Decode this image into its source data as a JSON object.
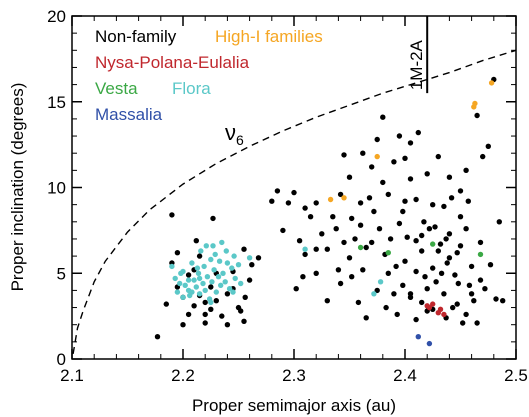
{
  "chart_data": {
    "type": "scatter",
    "title": "",
    "xlabel": "Proper semimajor axis (au)",
    "ylabel": "Proper inclination (degrees)",
    "xlim": [
      2.1,
      2.5
    ],
    "ylim": [
      0,
      20
    ],
    "x_ticks": [
      "2.1",
      "2.2",
      "2.3",
      "2.4",
      "2.5"
    ],
    "y_ticks": [
      "0",
      "5",
      "10",
      "15",
      "20"
    ],
    "grid": false,
    "legend_position": "top-left",
    "colors": {
      "Non-family": "#000000",
      "High-I families": "#f5a623",
      "Nysa-Polana-Eulalia": "#c0272d",
      "Vesta": "#3ba845",
      "Flora": "#5bc8c8",
      "Massalia": "#3050a8"
    },
    "series": [
      {
        "name": "Non-family",
        "points": [
          [
            2.177,
            1.3
          ],
          [
            2.185,
            3.2
          ],
          [
            2.19,
            8.4
          ],
          [
            2.19,
            5.6
          ],
          [
            2.195,
            4.2
          ],
          [
            2.2,
            3.6
          ],
          [
            2.205,
            2.6
          ],
          [
            2.205,
            4.9
          ],
          [
            2.21,
            3.1
          ],
          [
            2.21,
            5.2
          ],
          [
            2.215,
            3.7
          ],
          [
            2.215,
            6.0
          ],
          [
            2.22,
            2.1
          ],
          [
            2.22,
            3.3
          ],
          [
            2.22,
            2.6
          ],
          [
            2.225,
            4.2
          ],
          [
            2.225,
            2.9
          ],
          [
            2.23,
            5.0
          ],
          [
            2.23,
            3.4
          ],
          [
            2.235,
            2.5
          ],
          [
            2.24,
            3.8
          ],
          [
            2.24,
            2.0
          ],
          [
            2.245,
            5.1
          ],
          [
            2.245,
            4.1
          ],
          [
            2.25,
            3.0
          ],
          [
            2.252,
            2.8
          ],
          [
            2.256,
            3.6
          ],
          [
            2.26,
            4.6
          ],
          [
            2.255,
            6.4
          ],
          [
            2.262,
            5.5
          ],
          [
            2.227,
            8.2
          ],
          [
            2.212,
            6.9
          ],
          [
            2.195,
            6.2
          ],
          [
            2.255,
            2.2
          ],
          [
            2.2,
            2.0
          ],
          [
            2.268,
            5.9
          ],
          [
            2.28,
            9.2
          ],
          [
            2.285,
            9.8
          ],
          [
            2.29,
            7.5
          ],
          [
            2.295,
            9.1
          ],
          [
            2.3,
            9.7
          ],
          [
            2.305,
            6.9
          ],
          [
            2.308,
            4.8
          ],
          [
            2.31,
            8.8
          ],
          [
            2.315,
            8.3
          ],
          [
            2.32,
            9.1
          ],
          [
            2.325,
            7.3
          ],
          [
            2.33,
            6.4
          ],
          [
            2.335,
            8.3
          ],
          [
            2.34,
            5.2
          ],
          [
            2.342,
            9.6
          ],
          [
            2.345,
            11.9
          ],
          [
            2.35,
            10.6
          ],
          [
            2.352,
            8.2
          ],
          [
            2.355,
            7.0
          ],
          [
            2.36,
            9.1
          ],
          [
            2.362,
            12.0
          ],
          [
            2.365,
            6.5
          ],
          [
            2.368,
            9.4
          ],
          [
            2.37,
            11.2
          ],
          [
            2.372,
            8.6
          ],
          [
            2.375,
            12.8
          ],
          [
            2.377,
            7.6
          ],
          [
            2.38,
            14.1
          ],
          [
            2.382,
            6.1
          ],
          [
            2.385,
            9.6
          ],
          [
            2.387,
            7.0
          ],
          [
            2.39,
            11.5
          ],
          [
            2.392,
            5.4
          ],
          [
            2.395,
            13.0
          ],
          [
            2.398,
            8.6
          ],
          [
            2.4,
            11.7
          ],
          [
            2.402,
            7.1
          ],
          [
            2.405,
            10.5
          ],
          [
            2.405,
            12.6
          ],
          [
            2.41,
            9.3
          ],
          [
            2.41,
            5.1
          ],
          [
            2.412,
            13.2
          ],
          [
            2.415,
            6.3
          ],
          [
            2.417,
            8.0
          ],
          [
            2.42,
            10.8
          ],
          [
            2.422,
            7.6
          ],
          [
            2.425,
            9.0
          ],
          [
            2.428,
            4.5
          ],
          [
            2.43,
            11.8
          ],
          [
            2.432,
            6.7
          ],
          [
            2.435,
            8.9
          ],
          [
            2.435,
            3.8
          ],
          [
            2.438,
            5.6
          ],
          [
            2.44,
            7.3
          ],
          [
            2.442,
            9.4
          ],
          [
            2.445,
            4.9
          ],
          [
            2.447,
            6.2
          ],
          [
            2.45,
            8.3
          ],
          [
            2.452,
            2.1
          ],
          [
            2.455,
            7.6
          ],
          [
            2.457,
            9.2
          ],
          [
            2.46,
            5.4
          ],
          [
            2.462,
            3.4
          ],
          [
            2.465,
            14.2
          ],
          [
            2.468,
            6.8
          ],
          [
            2.47,
            11.8
          ],
          [
            2.472,
            4.1
          ],
          [
            2.475,
            12.4
          ],
          [
            2.477,
            5.5
          ],
          [
            2.48,
            16.3
          ],
          [
            2.482,
            3.5
          ],
          [
            2.485,
            8.0
          ],
          [
            2.488,
            3.4
          ],
          [
            2.35,
            5.9
          ],
          [
            2.342,
            4.4
          ],
          [
            2.358,
            3.3
          ],
          [
            2.365,
            2.4
          ],
          [
            2.375,
            4.0
          ],
          [
            2.383,
            3.0
          ],
          [
            2.393,
            2.6
          ],
          [
            2.398,
            4.3
          ],
          [
            2.405,
            3.6
          ],
          [
            2.41,
            2.3
          ],
          [
            2.415,
            3.3
          ],
          [
            2.42,
            4.1
          ],
          [
            2.425,
            2.9
          ],
          [
            2.43,
            6.3
          ],
          [
            2.437,
            2.4
          ],
          [
            2.443,
            3.0
          ],
          [
            2.448,
            4.4
          ],
          [
            2.455,
            2.6
          ],
          [
            2.46,
            3.8
          ],
          [
            2.465,
            2.1
          ],
          [
            2.44,
            10.6
          ],
          [
            2.45,
            9.8
          ],
          [
            2.455,
            11.0
          ],
          [
            2.352,
            4.8
          ],
          [
            2.362,
            5.2
          ],
          [
            2.41,
            6.9
          ],
          [
            2.4,
            5.7
          ],
          [
            2.418,
            4.8
          ],
          [
            2.427,
            7.7
          ],
          [
            2.433,
            5.0
          ],
          [
            2.44,
            5.9
          ],
          [
            2.338,
            7.6
          ],
          [
            2.32,
            6.4
          ],
          [
            2.31,
            6.1
          ],
          [
            2.39,
            3.8
          ],
          [
            2.38,
            10.3
          ],
          [
            2.37,
            6.8
          ],
          [
            2.42,
            2.8
          ],
          [
            2.425,
            5.3
          ],
          [
            2.447,
            3.2
          ],
          [
            2.45,
            6.6
          ],
          [
            2.458,
            4.3
          ],
          [
            2.302,
            4.1
          ],
          [
            2.36,
            7.8
          ],
          [
            2.415,
            7.2
          ],
          [
            2.468,
            4.6
          ],
          [
            2.4,
            9.2
          ],
          [
            2.437,
            7.0
          ],
          [
            2.405,
            3.8
          ],
          [
            2.385,
            5.0
          ],
          [
            2.33,
            3.4
          ],
          [
            2.32,
            5.0
          ],
          [
            2.345,
            6.8
          ],
          [
            2.395,
            7.9
          ]
        ]
      },
      {
        "name": "High-I families",
        "points": [
          [
            2.333,
            9.3
          ],
          [
            2.345,
            9.4
          ],
          [
            2.375,
            11.8
          ],
          [
            2.462,
            14.7
          ],
          [
            2.463,
            14.9
          ],
          [
            2.478,
            16.1
          ]
        ]
      },
      {
        "name": "Nysa-Polana-Eulalia",
        "points": [
          [
            2.42,
            3.1
          ],
          [
            2.422,
            3.0
          ],
          [
            2.425,
            3.2
          ],
          [
            2.43,
            2.7
          ],
          [
            2.432,
            2.9
          ],
          [
            2.435,
            2.6
          ]
        ]
      },
      {
        "name": "Vesta",
        "points": [
          [
            2.36,
            6.5
          ],
          [
            2.385,
            6.2
          ],
          [
            2.425,
            6.7
          ],
          [
            2.468,
            6.1
          ]
        ]
      },
      {
        "name": "Flora",
        "points": [
          [
            2.19,
            5.4
          ],
          [
            2.193,
            4.7
          ],
          [
            2.195,
            3.9
          ],
          [
            2.197,
            4.4
          ],
          [
            2.2,
            5.1
          ],
          [
            2.2,
            3.6
          ],
          [
            2.202,
            4.3
          ],
          [
            2.205,
            4.0
          ],
          [
            2.206,
            3.7
          ],
          [
            2.208,
            5.6
          ],
          [
            2.21,
            4.6
          ],
          [
            2.212,
            4.2
          ],
          [
            2.214,
            5.0
          ],
          [
            2.215,
            3.8
          ],
          [
            2.216,
            6.3
          ],
          [
            2.218,
            4.4
          ],
          [
            2.219,
            5.4
          ],
          [
            2.22,
            4.0
          ],
          [
            2.221,
            6.6
          ],
          [
            2.222,
            4.8
          ],
          [
            2.224,
            3.5
          ],
          [
            2.225,
            5.8
          ],
          [
            2.226,
            4.5
          ],
          [
            2.228,
            5.2
          ],
          [
            2.229,
            6.1
          ],
          [
            2.23,
            3.9
          ],
          [
            2.232,
            4.8
          ],
          [
            2.233,
            5.7
          ],
          [
            2.234,
            4.3
          ],
          [
            2.235,
            6.8
          ],
          [
            2.236,
            5.0
          ],
          [
            2.238,
            4.5
          ],
          [
            2.239,
            6.3
          ],
          [
            2.24,
            5.6
          ],
          [
            2.242,
            4.1
          ],
          [
            2.244,
            5.3
          ],
          [
            2.246,
            6.0
          ],
          [
            2.247,
            4.7
          ],
          [
            2.25,
            5.5
          ],
          [
            2.252,
            4.4
          ],
          [
            2.227,
            6.6
          ],
          [
            2.213,
            5.3
          ],
          [
            2.198,
            5.0
          ],
          [
            2.205,
            4.6
          ],
          [
            2.215,
            4.7
          ],
          [
            2.225,
            3.3
          ],
          [
            2.245,
            3.9
          ],
          [
            2.26,
            5.9
          ],
          [
            2.31,
            6.4
          ],
          [
            2.372,
            3.8
          ],
          [
            2.378,
            4.5
          ],
          [
            2.208,
            3.9
          ]
        ]
      },
      {
        "name": "Massalia",
        "points": [
          [
            2.412,
            1.3
          ],
          [
            2.422,
            0.9
          ]
        ]
      }
    ],
    "annotations": [
      {
        "text": "1M-2A",
        "x": 2.42,
        "ymin": 15.5,
        "ymax": 20
      },
      {
        "text": "ν",
        "subscript": "6"
      }
    ],
    "secular_resonance_curve": [
      [
        2.101,
        0.3
      ],
      [
        2.105,
        1.8
      ],
      [
        2.11,
        2.8
      ],
      [
        2.12,
        4.5
      ],
      [
        2.13,
        5.7
      ],
      [
        2.15,
        7.4
      ],
      [
        2.17,
        8.7
      ],
      [
        2.2,
        10.2
      ],
      [
        2.23,
        11.4
      ],
      [
        2.26,
        12.4
      ],
      [
        2.29,
        13.3
      ],
      [
        2.32,
        14.1
      ],
      [
        2.35,
        14.8
      ],
      [
        2.38,
        15.5
      ],
      [
        2.41,
        16.1
      ],
      [
        2.44,
        16.7
      ],
      [
        2.47,
        17.4
      ],
      [
        2.5,
        18.0
      ]
    ]
  }
}
